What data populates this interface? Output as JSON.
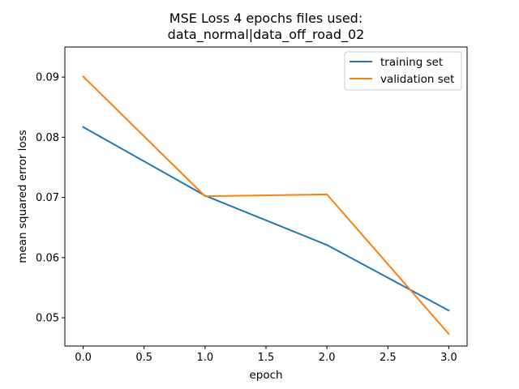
{
  "chart_data": {
    "type": "line",
    "title_line1": "MSE Loss 4 epochs files used:",
    "title_line2": "data_normal|data_off_road_02",
    "xlabel": "epoch",
    "ylabel": "mean squared error loss",
    "xlim": [
      -0.15,
      3.15
    ],
    "ylim": [
      0.0453,
      0.095
    ],
    "xticks": [
      0.0,
      0.5,
      1.0,
      1.5,
      2.0,
      2.5,
      3.0
    ],
    "xtick_labels": [
      "0.0",
      "0.5",
      "1.0",
      "1.5",
      "2.0",
      "2.5",
      "3.0"
    ],
    "yticks": [
      0.05,
      0.06,
      0.07,
      0.08,
      0.09
    ],
    "ytick_labels": [
      "0.05",
      "0.06",
      "0.07",
      "0.08",
      "0.09"
    ],
    "grid": false,
    "legend_position": "upper right",
    "x": [
      0,
      1,
      2,
      3
    ],
    "series": [
      {
        "name": "training set",
        "color": "#1f77b4",
        "values": [
          0.0817,
          0.0703,
          0.0621,
          0.0512
        ]
      },
      {
        "name": "validation set",
        "color": "#ff7f0e",
        "values": [
          0.0901,
          0.0702,
          0.0705,
          0.0473
        ]
      }
    ]
  }
}
